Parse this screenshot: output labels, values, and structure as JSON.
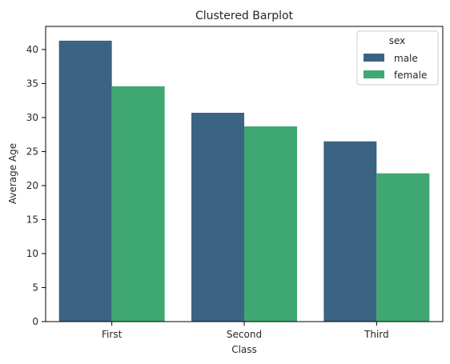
{
  "chart_data": {
    "type": "bar",
    "title": "Clustered Barplot",
    "xlabel": "Class",
    "ylabel": "Average Age",
    "categories": [
      "First",
      "Second",
      "Third"
    ],
    "series": [
      {
        "name": "male",
        "values": [
          41.3,
          30.7,
          26.5
        ],
        "color": "#3b6482"
      },
      {
        "name": "female",
        "values": [
          34.6,
          28.7,
          21.8
        ],
        "color": "#3fa872"
      }
    ],
    "ylim": [
      0,
      43.4
    ],
    "yticks": [
      0,
      5,
      10,
      15,
      20,
      25,
      30,
      35,
      40
    ],
    "grid": false,
    "legend": {
      "title": "sex",
      "placement": "top-right"
    }
  }
}
